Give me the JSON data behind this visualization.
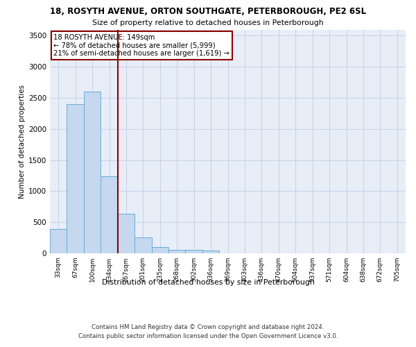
{
  "title_line1": "18, ROSYTH AVENUE, ORTON SOUTHGATE, PETERBOROUGH, PE2 6SL",
  "title_line2": "Size of property relative to detached houses in Peterborough",
  "xlabel": "Distribution of detached houses by size in Peterborough",
  "ylabel": "Number of detached properties",
  "bin_labels": [
    "33sqm",
    "67sqm",
    "100sqm",
    "134sqm",
    "167sqm",
    "201sqm",
    "235sqm",
    "268sqm",
    "302sqm",
    "336sqm",
    "369sqm",
    "403sqm",
    "436sqm",
    "470sqm",
    "504sqm",
    "537sqm",
    "571sqm",
    "604sqm",
    "638sqm",
    "672sqm",
    "705sqm"
  ],
  "bar_values": [
    390,
    2400,
    2600,
    1240,
    640,
    260,
    100,
    60,
    55,
    40,
    0,
    0,
    0,
    0,
    0,
    0,
    0,
    0,
    0,
    0,
    0
  ],
  "bar_color": "#c5d8f0",
  "bar_edge_color": "#6aaad4",
  "vline_x": 3.52,
  "vline_color": "#8b0000",
  "annotation_text": "18 ROSYTH AVENUE: 149sqm\n← 78% of detached houses are smaller (5,999)\n21% of semi-detached houses are larger (1,619) →",
  "annotation_box_color": "#ffffff",
  "annotation_box_edge": "#8b0000",
  "ylim": [
    0,
    3600
  ],
  "yticks": [
    0,
    500,
    1000,
    1500,
    2000,
    2500,
    3000,
    3500
  ],
  "grid_color": "#c8d4e8",
  "background_color": "#e8eef8",
  "footer": "Contains HM Land Registry data © Crown copyright and database right 2024.\nContains public sector information licensed under the Open Government Licence v3.0."
}
